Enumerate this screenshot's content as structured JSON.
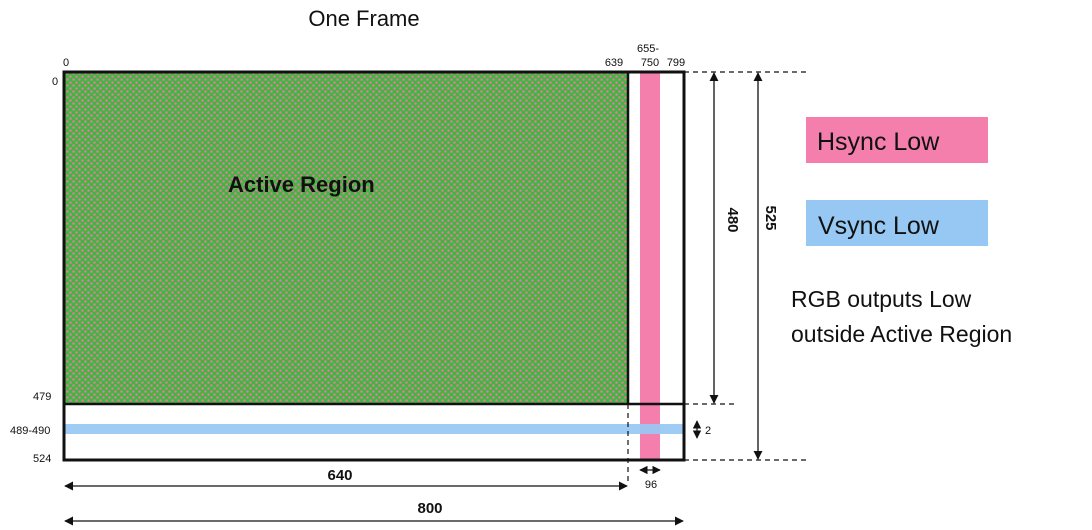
{
  "title": "One Frame",
  "active_region_label": "Active Region",
  "column_labels": {
    "start": "0",
    "active_end": "639",
    "hsync_top": "655-",
    "hsync_bottom": "750",
    "total_end": "799"
  },
  "row_labels": {
    "start": "0",
    "active_end": "479",
    "vsync": "489-490",
    "total_end": "524"
  },
  "dimensions": {
    "active_width": "640",
    "total_width": "800",
    "active_height": "480",
    "total_height": "525",
    "vsync_height": "2",
    "hsync_width": "96"
  },
  "legend": {
    "hsync": "Hsync Low",
    "vsync": "Vsync Low"
  },
  "note_line1": "RGB outputs Low",
  "note_line2": "outside Active Region",
  "colors": {
    "active_green": "#3cb83c",
    "dot_pink": "#e07aa0",
    "hsync_pink": "#f47fac",
    "vsync_blue": "#97c8f3",
    "outline": "#111111"
  }
}
